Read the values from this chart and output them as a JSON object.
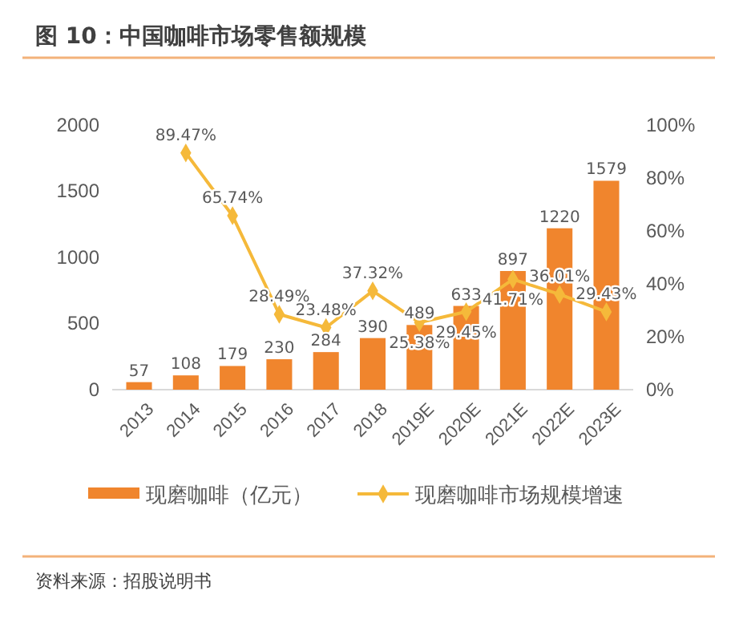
{
  "chart_data": {
    "type": "bar",
    "title": "图 10：中国咖啡市场零售额规模",
    "categories": [
      "2013",
      "2014",
      "2015",
      "2016",
      "2017",
      "2018",
      "2019E",
      "2020E",
      "2021E",
      "2022E",
      "2023E"
    ],
    "series": [
      {
        "name": "现磨咖啡（亿元）",
        "color": "#f0852d",
        "values": [
          57,
          108,
          179,
          230,
          284,
          390,
          489,
          633,
          897,
          1220,
          1579
        ]
      },
      {
        "name": "现磨咖啡市场规模增速",
        "type": "line",
        "axis": "y2",
        "color": "#f5b93a",
        "values": [
          null,
          89.47,
          65.74,
          28.49,
          23.48,
          37.32,
          25.38,
          29.45,
          41.71,
          36.01,
          29.43
        ],
        "value_labels": [
          null,
          "89.47%",
          "65.74%",
          "28.49%",
          "23.48%",
          "37.32%",
          "25.38%",
          "29.45%",
          "41.71%",
          "36.01%",
          "29.43%"
        ]
      }
    ],
    "ylim": [
      0,
      2000
    ],
    "yticks": [
      0,
      500,
      1000,
      1500,
      2000
    ],
    "y2lim": [
      0,
      100
    ],
    "y2ticks": [
      {
        "value": 0,
        "label": "0%"
      },
      {
        "value": 20,
        "label": "20%"
      },
      {
        "value": 40,
        "label": "40%"
      },
      {
        "value": 60,
        "label": "60%"
      },
      {
        "value": 80,
        "label": "80%"
      },
      {
        "value": 100,
        "label": "100%"
      }
    ],
    "data_labels": true,
    "marker": "diamond",
    "grid": false,
    "legend": "bottom",
    "annotations": [
      "资料来源：招股说明书"
    ]
  }
}
